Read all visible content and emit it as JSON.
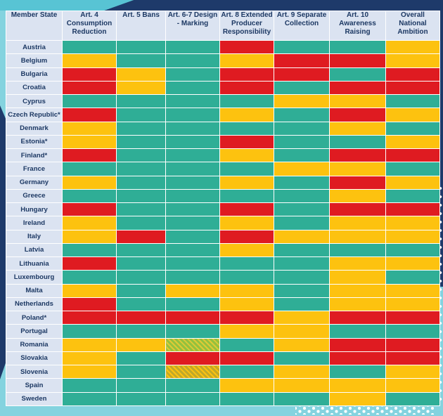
{
  "colors": {
    "green": "#2fae96",
    "yellow": "#fdc20f",
    "red": "#df1b21",
    "hatch_green_a": "#93c13f",
    "hatch_green_b": "#dfca35",
    "hatch_yellow_a": "#bfa92a",
    "hatch_yellow_b": "#fdc20f",
    "header_bg": "#dbe3f1",
    "header_text": "#1c3863",
    "grid_line": "#ffffff",
    "page_bg": "#84d3df",
    "accent_navy": "#1e3a6a"
  },
  "chart_data": {
    "type": "heatmap",
    "title": "",
    "value_scale": [
      "green",
      "yellow",
      "red",
      "hatch_green",
      "hatch_yellow"
    ],
    "columns": [
      "Member State",
      "Art. 4 Consumption Reduction",
      "Art. 5 Bans",
      "Art. 6-7 Design - Marking",
      "Art. 8 Extended Producer Responsibility",
      "Art. 9 Separate Collection",
      "Art. 10 Awareness Raising",
      "Overall National Ambition"
    ],
    "rows": [
      {
        "state": "Austria",
        "ratings": [
          "green",
          "green",
          "green",
          "red",
          "green",
          "green",
          "yellow"
        ]
      },
      {
        "state": "Belgium",
        "ratings": [
          "yellow",
          "green",
          "green",
          "yellow",
          "red",
          "red",
          "yellow"
        ]
      },
      {
        "state": "Bulgaria",
        "ratings": [
          "red",
          "yellow",
          "green",
          "red",
          "red",
          "green",
          "red"
        ]
      },
      {
        "state": "Croatia",
        "ratings": [
          "red",
          "yellow",
          "green",
          "red",
          "green",
          "red",
          "red"
        ]
      },
      {
        "state": "Cyprus",
        "ratings": [
          "green",
          "green",
          "green",
          "green",
          "yellow",
          "yellow",
          "green"
        ]
      },
      {
        "state": "Czech Republic*",
        "ratings": [
          "red",
          "green",
          "green",
          "yellow",
          "green",
          "red",
          "yellow"
        ]
      },
      {
        "state": "Denmark",
        "ratings": [
          "yellow",
          "green",
          "green",
          "green",
          "green",
          "yellow",
          "green"
        ]
      },
      {
        "state": "Estonia*",
        "ratings": [
          "yellow",
          "green",
          "green",
          "red",
          "green",
          "green",
          "yellow"
        ]
      },
      {
        "state": "Finland*",
        "ratings": [
          "red",
          "green",
          "green",
          "yellow",
          "green",
          "red",
          "red"
        ]
      },
      {
        "state": "France",
        "ratings": [
          "green",
          "green",
          "green",
          "green",
          "yellow",
          "yellow",
          "green"
        ]
      },
      {
        "state": "Germany",
        "ratings": [
          "yellow",
          "green",
          "green",
          "yellow",
          "green",
          "red",
          "yellow"
        ]
      },
      {
        "state": "Greece",
        "ratings": [
          "green",
          "green",
          "green",
          "green",
          "green",
          "yellow",
          "green"
        ]
      },
      {
        "state": "Hungary",
        "ratings": [
          "red",
          "green",
          "green",
          "red",
          "green",
          "red",
          "red"
        ]
      },
      {
        "state": "Ireland",
        "ratings": [
          "yellow",
          "green",
          "green",
          "yellow",
          "green",
          "yellow",
          "yellow"
        ]
      },
      {
        "state": "Italy",
        "ratings": [
          "yellow",
          "red",
          "green",
          "red",
          "yellow",
          "yellow",
          "yellow"
        ]
      },
      {
        "state": "Latvia",
        "ratings": [
          "green",
          "green",
          "green",
          "yellow",
          "green",
          "green",
          "green"
        ]
      },
      {
        "state": "Lithuania",
        "ratings": [
          "red",
          "green",
          "green",
          "green",
          "green",
          "yellow",
          "yellow"
        ]
      },
      {
        "state": "Luxembourg",
        "ratings": [
          "green",
          "green",
          "green",
          "green",
          "green",
          "yellow",
          "green"
        ]
      },
      {
        "state": "Malta",
        "ratings": [
          "yellow",
          "green",
          "yellow",
          "yellow",
          "green",
          "yellow",
          "yellow"
        ]
      },
      {
        "state": "Netherlands",
        "ratings": [
          "red",
          "green",
          "green",
          "yellow",
          "green",
          "yellow",
          "yellow"
        ]
      },
      {
        "state": "Poland*",
        "ratings": [
          "red",
          "red",
          "red",
          "red",
          "yellow",
          "red",
          "red"
        ]
      },
      {
        "state": "Portugal",
        "ratings": [
          "green",
          "green",
          "green",
          "yellow",
          "yellow",
          "green",
          "green"
        ]
      },
      {
        "state": "Romania",
        "ratings": [
          "yellow",
          "yellow",
          "hatch_green",
          "green",
          "yellow",
          "red",
          "red"
        ]
      },
      {
        "state": "Slovakia",
        "ratings": [
          "yellow",
          "green",
          "red",
          "red",
          "green",
          "red",
          "red"
        ]
      },
      {
        "state": "Slovenia",
        "ratings": [
          "yellow",
          "green",
          "hatch_yellow",
          "green",
          "yellow",
          "green",
          "yellow"
        ]
      },
      {
        "state": "Spain",
        "ratings": [
          "green",
          "green",
          "green",
          "yellow",
          "yellow",
          "yellow",
          "yellow"
        ]
      },
      {
        "state": "Sweden",
        "ratings": [
          "green",
          "green",
          "green",
          "green",
          "green",
          "yellow",
          "green"
        ]
      }
    ]
  }
}
